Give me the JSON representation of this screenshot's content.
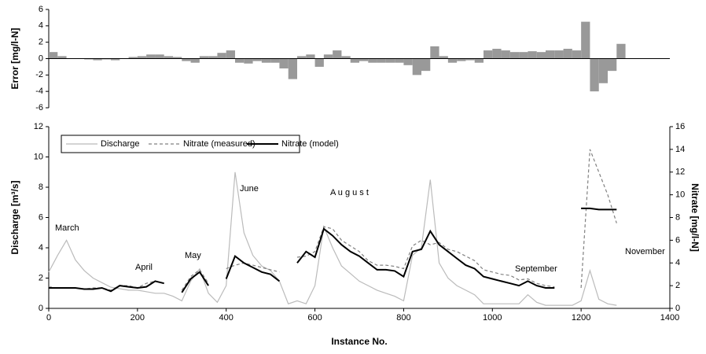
{
  "chart_data": [
    {
      "type": "bar",
      "ylabel": "Error [mg/l-N]",
      "color": "#999999",
      "xlim": [
        0,
        1400
      ],
      "ylim": [
        -6,
        6
      ],
      "yticks": [
        -6,
        -4,
        -2,
        0,
        2,
        4,
        6
      ],
      "x": [
        0,
        20,
        40,
        60,
        80,
        100,
        120,
        140,
        160,
        180,
        200,
        220,
        240,
        260,
        280,
        300,
        320,
        340,
        360,
        380,
        400,
        420,
        440,
        460,
        480,
        500,
        520,
        540,
        560,
        580,
        600,
        620,
        640,
        660,
        680,
        700,
        720,
        740,
        760,
        780,
        800,
        820,
        840,
        860,
        880,
        900,
        920,
        940,
        960,
        980,
        1000,
        1020,
        1040,
        1060,
        1080,
        1100,
        1120,
        1140,
        1160,
        1180,
        1200,
        1220,
        1240,
        1260,
        1280
      ],
      "values": [
        0.8,
        0.3,
        0,
        0,
        -0.1,
        -0.2,
        -0.1,
        -0.2,
        0,
        0.2,
        0.3,
        0.5,
        0.5,
        0.3,
        0.2,
        -0.3,
        -0.5,
        0.3,
        0.3,
        0.7,
        1.0,
        -0.5,
        -0.6,
        -0.3,
        -0.5,
        -0.5,
        -1.2,
        -2.5,
        0.3,
        0.5,
        -1.0,
        0.5,
        1.0,
        0.3,
        -0.5,
        -0.3,
        -0.5,
        -0.5,
        -0.5,
        -0.5,
        -0.8,
        -2.0,
        -1.5,
        1.5,
        0.3,
        -0.5,
        -0.3,
        -0.2,
        -0.5,
        1.0,
        1.2,
        1.0,
        0.8,
        0.8,
        0.9,
        0.8,
        1.0,
        1.0,
        1.2,
        1.0,
        4.5,
        -4.0,
        -3.0,
        -1.5,
        1.8
      ]
    },
    {
      "type": "line",
      "xlabel": "Instance No.",
      "ylabel": "Discharge [m³/s]",
      "y2label": "Nitrate [mg/l-N]",
      "xlim": [
        0,
        1400
      ],
      "xticks": [
        0,
        200,
        400,
        600,
        800,
        1000,
        1200,
        1400
      ],
      "ylim": [
        0,
        12
      ],
      "yticks": [
        0,
        2,
        4,
        6,
        8,
        10,
        12
      ],
      "y2lim": [
        0,
        16
      ],
      "y2ticks": [
        0,
        2,
        4,
        6,
        8,
        10,
        12,
        14,
        16
      ],
      "legend": "top-left",
      "annotations": [
        "March",
        "April",
        "May",
        "June",
        "A u g u s t",
        "September",
        "November"
      ],
      "x": [
        0,
        20,
        40,
        60,
        80,
        100,
        120,
        140,
        160,
        180,
        200,
        220,
        240,
        260,
        280,
        300,
        320,
        340,
        360,
        380,
        400,
        420,
        440,
        460,
        480,
        500,
        520,
        540,
        560,
        580,
        600,
        620,
        640,
        660,
        680,
        700,
        720,
        740,
        760,
        780,
        800,
        820,
        840,
        860,
        880,
        900,
        920,
        940,
        960,
        980,
        1000,
        1020,
        1040,
        1060,
        1080,
        1100,
        1120,
        1140,
        1160,
        1180,
        1200,
        1220,
        1240,
        1260,
        1280
      ],
      "series": [
        {
          "name": "Discharge",
          "color": "#bbbbbb",
          "dashed": false,
          "values": [
            2.4,
            3.5,
            4.5,
            3.2,
            2.5,
            2.0,
            1.7,
            1.4,
            1.3,
            1.2,
            1.2,
            1.1,
            1.0,
            1.0,
            0.8,
            0.5,
            1.8,
            2.6,
            1.0,
            0.4,
            1.5,
            9.0,
            5.0,
            3.5,
            2.8,
            2.5,
            1.8,
            0.3,
            0.5,
            0.3,
            1.5,
            5.4,
            4.0,
            2.8,
            2.3,
            1.8,
            1.5,
            1.2,
            1.0,
            0.8,
            0.5,
            3.5,
            4.0,
            8.5,
            3.0,
            2.0,
            1.5,
            1.2,
            0.9,
            0.3,
            0.3,
            0.3,
            0.3,
            0.3,
            0.9,
            0.4,
            0.2,
            0.2,
            0.2,
            0.2,
            0.5,
            2.5,
            0.6,
            0.3,
            0.2
          ]
        },
        {
          "name": "Nitrate (measured)",
          "color": "#808080",
          "dashed": true,
          "axis": "y2",
          "values": [
            1.9,
            1.8,
            1.8,
            1.8,
            1.7,
            1.8,
            1.8,
            1.6,
            2.0,
            2.0,
            1.8,
            2.2,
            2.4,
            2.2,
            null,
            1.6,
            2.8,
            3.4,
            2.2,
            null,
            3.5,
            3.8,
            4.0,
            3.8,
            3.6,
            3.4,
            3.2,
            null,
            4.5,
            4.6,
            5.0,
            7.2,
            7.0,
            6.0,
            5.5,
            5.0,
            4.2,
            3.8,
            3.8,
            3.7,
            3.5,
            5.5,
            6.0,
            5.6,
            5.8,
            5.2,
            5.0,
            4.6,
            4.2,
            3.4,
            3.2,
            3.0,
            2.9,
            2.5,
            2.6,
            2.2,
            2.0,
            1.9,
            null,
            null,
            1.8,
            14.0,
            12.0,
            10.0,
            7.5
          ]
        },
        {
          "name": "Nitrate (model)",
          "color": "#000000",
          "dashed": false,
          "axis": "y2",
          "values": [
            1.8,
            1.8,
            1.8,
            1.8,
            1.7,
            1.7,
            1.8,
            1.5,
            2.0,
            1.9,
            1.8,
            1.9,
            2.4,
            2.2,
            null,
            1.4,
            2.6,
            3.2,
            2.0,
            null,
            2.6,
            4.6,
            4.0,
            3.6,
            3.2,
            3.0,
            2.4,
            null,
            4.0,
            5.0,
            4.5,
            7.0,
            6.4,
            5.6,
            5.0,
            4.6,
            4.0,
            3.4,
            3.4,
            3.3,
            2.8,
            5.0,
            5.2,
            6.8,
            5.6,
            5.0,
            4.4,
            3.8,
            3.5,
            2.8,
            2.6,
            2.4,
            2.2,
            2.0,
            2.4,
            2.0,
            1.8,
            1.8,
            null,
            null,
            8.8,
            8.8,
            8.7,
            8.7,
            8.7
          ]
        }
      ]
    }
  ]
}
